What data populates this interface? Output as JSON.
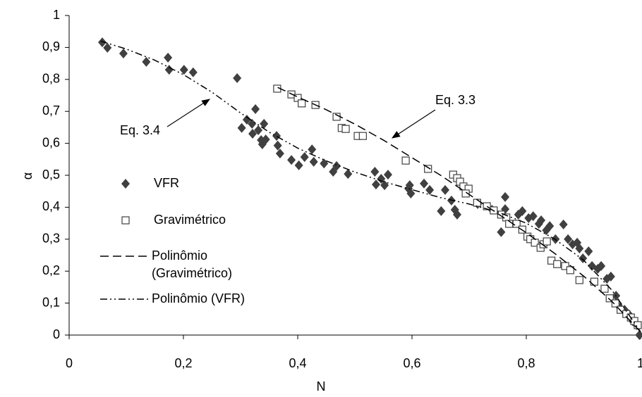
{
  "chart_data": {
    "type": "scatter",
    "xlabel": "N",
    "ylabel": "α",
    "xlim": [
      0,
      1
    ],
    "ylim": [
      0,
      1
    ],
    "xticks": [
      0,
      {
        "value": 0.2,
        "label": "0,2"
      },
      {
        "value": 0.4,
        "label": "0,4"
      },
      {
        "value": 0.6,
        "label": "0,6"
      },
      {
        "value": 0.8,
        "label": "0,8"
      },
      1
    ],
    "yticks": [
      0,
      {
        "value": 0.1,
        "label": "0,1"
      },
      {
        "value": 0.2,
        "label": "0,2"
      },
      {
        "value": 0.3,
        "label": "0,3"
      },
      {
        "value": 0.4,
        "label": "0,4"
      },
      {
        "value": 0.5,
        "label": "0,5"
      },
      {
        "value": 0.6,
        "label": "0,6"
      },
      {
        "value": 0.7,
        "label": "0,7"
      },
      {
        "value": 0.8,
        "label": "0,8"
      },
      {
        "value": 0.9,
        "label": "0,9"
      },
      1
    ],
    "annotations": [
      {
        "text": "Eq. 3.4"
      },
      {
        "text": "Eq. 3.3"
      }
    ],
    "series": [
      {
        "name": "VFR",
        "type": "scatter",
        "marker": "diamond",
        "color": "#404040",
        "x": [
          0.058,
          0.067,
          0.095,
          0.135,
          0.173,
          0.175,
          0.201,
          0.217,
          0.294,
          0.302,
          0.311,
          0.32,
          0.321,
          0.326,
          0.331,
          0.336,
          0.341,
          0.338,
          0.344,
          0.363,
          0.365,
          0.369,
          0.389,
          0.402,
          0.412,
          0.425,
          0.428,
          0.446,
          0.462,
          0.468,
          0.488,
          0.535,
          0.537,
          0.546,
          0.558,
          0.552,
          0.594,
          0.596,
          0.598,
          0.621,
          0.631,
          0.651,
          0.658,
          0.669,
          0.675,
          0.679,
          0.715,
          0.74,
          0.756,
          0.763,
          0.763,
          0.786,
          0.793,
          0.804,
          0.812,
          0.822,
          0.826,
          0.835,
          0.841,
          0.851,
          0.865,
          0.873,
          0.881,
          0.889,
          0.893,
          0.899,
          0.909,
          0.915,
          0.925,
          0.931,
          0.941,
          0.948,
          0.957,
          0.964,
          0.972,
          0.98,
          0.986,
          0.993,
          0.998
        ],
        "values": [
          0.916,
          0.899,
          0.881,
          0.855,
          0.868,
          0.83,
          0.83,
          0.822,
          0.804,
          0.648,
          0.674,
          0.661,
          0.63,
          0.707,
          0.641,
          0.61,
          0.661,
          0.597,
          0.612,
          0.623,
          0.593,
          0.568,
          0.548,
          0.531,
          0.557,
          0.581,
          0.542,
          0.537,
          0.511,
          0.529,
          0.504,
          0.511,
          0.471,
          0.489,
          0.502,
          0.469,
          0.458,
          0.469,
          0.443,
          0.474,
          0.454,
          0.388,
          0.454,
          0.421,
          0.392,
          0.377,
          0.41,
          0.392,
          0.322,
          0.432,
          0.394,
          0.377,
          0.388,
          0.366,
          0.372,
          0.348,
          0.359,
          0.328,
          0.341,
          0.3,
          0.346,
          0.3,
          0.284,
          0.289,
          0.271,
          0.24,
          0.262,
          0.216,
          0.207,
          0.216,
          0.176,
          0.183,
          0.123,
          0.086,
          0.079,
          0.064,
          0.044,
          0.031,
          0.0
        ]
      },
      {
        "name": "Gravimétrico",
        "type": "scatter",
        "marker": "square",
        "color": "#404040",
        "x": [
          0.364,
          0.389,
          0.4,
          0.407,
          0.431,
          0.468,
          0.477,
          0.484,
          0.505,
          0.514,
          0.589,
          0.628,
          0.672,
          0.679,
          0.684,
          0.69,
          0.699,
          0.694,
          0.714,
          0.731,
          0.743,
          0.756,
          0.765,
          0.77,
          0.783,
          0.793,
          0.802,
          0.807,
          0.815,
          0.825,
          0.83,
          0.836,
          0.844,
          0.854,
          0.868,
          0.877,
          0.893,
          0.919,
          0.937,
          0.946,
          0.956,
          0.965,
          0.975,
          0.983,
          0.989,
          0.995
        ],
        "values": [
          0.771,
          0.753,
          0.742,
          0.725,
          0.72,
          0.683,
          0.648,
          0.645,
          0.623,
          0.623,
          0.546,
          0.52,
          0.502,
          0.491,
          0.48,
          0.465,
          0.458,
          0.443,
          0.414,
          0.403,
          0.39,
          0.377,
          0.368,
          0.348,
          0.348,
          0.33,
          0.308,
          0.3,
          0.289,
          0.273,
          0.284,
          0.293,
          0.233,
          0.222,
          0.216,
          0.203,
          0.172,
          0.167,
          0.145,
          0.115,
          0.099,
          0.079,
          0.066,
          0.055,
          0.044,
          0.031
        ]
      },
      {
        "name": "Polinômio (Gravimétrico)",
        "type": "line",
        "dash": "dashed",
        "color": "#000000",
        "x": [
          0.365,
          0.4,
          0.45,
          0.5,
          0.55,
          0.6,
          0.65,
          0.7,
          0.75,
          0.8,
          0.85,
          0.9,
          0.95,
          1
        ],
        "values": [
          0.775,
          0.745,
          0.705,
          0.66,
          0.61,
          0.555,
          0.5,
          0.44,
          0.38,
          0.32,
          0.255,
          0.185,
          0.105,
          0.01
        ]
      },
      {
        "name": "Polinômio (VFR)",
        "type": "line",
        "dash": "dashdot",
        "color": "#000000",
        "x": [
          0.055,
          0.1,
          0.15,
          0.2,
          0.25,
          0.3,
          0.35,
          0.4,
          0.45,
          0.5,
          0.55,
          0.6,
          0.65,
          0.7,
          0.75,
          0.8,
          0.85,
          0.9,
          0.95,
          1
        ],
        "values": [
          0.92,
          0.895,
          0.86,
          0.815,
          0.76,
          0.695,
          0.635,
          0.585,
          0.545,
          0.51,
          0.48,
          0.455,
          0.43,
          0.41,
          0.385,
          0.35,
          0.3,
          0.235,
          0.14,
          0.01
        ]
      }
    ]
  }
}
